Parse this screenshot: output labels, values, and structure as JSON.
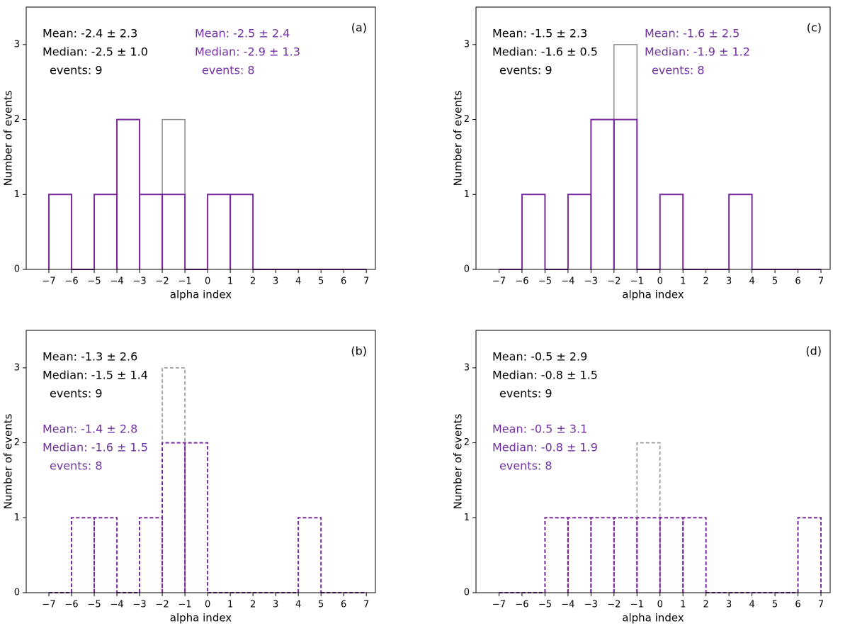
{
  "chart_data": [
    {
      "type": "histogram",
      "label": "(a)",
      "xlabel": "alpha index",
      "ylabel": "Number of events",
      "linestyle": "solid",
      "bins": [
        -7,
        -6,
        -5,
        -4,
        -3,
        -2,
        -1,
        0,
        1,
        2,
        3,
        4,
        5,
        6,
        7
      ],
      "series": [
        {
          "color": "#8c8c8c",
          "values": [
            1,
            0,
            1,
            2,
            1,
            2,
            0,
            1,
            1,
            0,
            0,
            0,
            0,
            0
          ],
          "stats": [
            "Mean: -2.4 ± 2.3",
            "Median: -2.5 ± 1.0",
            "events: 9"
          ]
        },
        {
          "color": "#7a2a9e",
          "values": [
            1,
            0,
            1,
            2,
            1,
            1,
            0,
            1,
            1,
            0,
            0,
            0,
            0,
            0
          ],
          "stats": [
            "Mean: -2.5 ± 2.4",
            "Median: -2.9 ± 1.3",
            "events: 8"
          ]
        }
      ],
      "xlim": [
        -8,
        7.4
      ],
      "ylim": [
        0,
        3.5
      ],
      "xticks": [
        {
          "value": -7,
          "label": "−7"
        },
        {
          "value": -6,
          "label": "−6"
        },
        {
          "value": -5,
          "label": "−5"
        },
        {
          "value": -4,
          "label": "−4"
        },
        {
          "value": -3,
          "label": "−3"
        },
        {
          "value": -2,
          "label": "−2"
        },
        {
          "value": -1,
          "label": "−1"
        },
        0,
        1,
        2,
        3,
        4,
        5,
        6,
        7
      ],
      "yticks": [
        0,
        1,
        2,
        3
      ]
    },
    {
      "type": "histogram",
      "label": "(c)",
      "xlabel": "alpha index",
      "ylabel": "Number of events",
      "linestyle": "solid",
      "bins": [
        -7,
        -6,
        -5,
        -4,
        -3,
        -2,
        -1,
        0,
        1,
        2,
        3,
        4,
        5,
        6,
        7
      ],
      "series": [
        {
          "color": "#8c8c8c",
          "values": [
            0,
            1,
            0,
            1,
            2,
            3,
            0,
            1,
            0,
            0,
            1,
            0,
            0,
            0
          ],
          "stats": [
            "Mean: -1.5 ± 2.3",
            "Median: -1.6 ± 0.5",
            "events: 9"
          ]
        },
        {
          "color": "#7a2a9e",
          "values": [
            0,
            1,
            0,
            1,
            2,
            2,
            0,
            1,
            0,
            0,
            1,
            0,
            0,
            0
          ],
          "stats": [
            "Mean: -1.6 ± 2.5",
            "Median: -1.9 ± 1.2",
            "events: 8"
          ]
        }
      ],
      "xlim": [
        -8,
        7.4
      ],
      "ylim": [
        0,
        3.5
      ],
      "xticks": [
        {
          "value": -7,
          "label": "−7"
        },
        {
          "value": -6,
          "label": "−6"
        },
        {
          "value": -5,
          "label": "−5"
        },
        {
          "value": -4,
          "label": "−4"
        },
        {
          "value": -3,
          "label": "−3"
        },
        {
          "value": -2,
          "label": "−2"
        },
        {
          "value": -1,
          "label": "−1"
        },
        0,
        1,
        2,
        3,
        4,
        5,
        6,
        7
      ],
      "yticks": [
        0,
        1,
        2,
        3
      ]
    },
    {
      "type": "histogram",
      "label": "(b)",
      "xlabel": "alpha index",
      "ylabel": "Number of events",
      "linestyle": "dashed",
      "bins": [
        -7,
        -6,
        -5,
        -4,
        -3,
        -2,
        -1,
        0,
        1,
        2,
        3,
        4,
        5,
        6,
        7
      ],
      "series": [
        {
          "color": "#8c8c8c",
          "values": [
            0,
            1,
            1,
            0,
            1,
            3,
            2,
            0,
            0,
            0,
            0,
            1,
            0,
            0
          ],
          "stats": [
            "Mean: -1.3 ± 2.6",
            "Median: -1.5 ± 1.4",
            "events: 9"
          ]
        },
        {
          "color": "#7a2a9e",
          "values": [
            0,
            1,
            1,
            0,
            1,
            2,
            2,
            0,
            0,
            0,
            0,
            1,
            0,
            0
          ],
          "stats": [
            "Mean: -1.4 ± 2.8",
            "Median: -1.6 ± 1.5",
            "events: 8"
          ]
        }
      ],
      "xlim": [
        -8,
        7.4
      ],
      "ylim": [
        0,
        3.5
      ],
      "xticks": [
        {
          "value": -7,
          "label": "−7"
        },
        {
          "value": -6,
          "label": "−6"
        },
        {
          "value": -5,
          "label": "−5"
        },
        {
          "value": -4,
          "label": "−4"
        },
        {
          "value": -3,
          "label": "−3"
        },
        {
          "value": -2,
          "label": "−2"
        },
        {
          "value": -1,
          "label": "−1"
        },
        0,
        1,
        2,
        3,
        4,
        5,
        6,
        7
      ],
      "yticks": [
        0,
        1,
        2,
        3
      ]
    },
    {
      "type": "histogram",
      "label": "(d)",
      "xlabel": "alpha index",
      "ylabel": "Number of events",
      "linestyle": "dashed",
      "bins": [
        -7,
        -6,
        -5,
        -4,
        -3,
        -2,
        -1,
        0,
        1,
        2,
        3,
        4,
        5,
        6,
        7
      ],
      "series": [
        {
          "color": "#8c8c8c",
          "values": [
            0,
            0,
            1,
            1,
            1,
            1,
            2,
            1,
            1,
            0,
            0,
            0,
            0,
            1
          ],
          "stats": [
            "Mean: -0.5 ± 2.9",
            "Median: -0.8 ± 1.5",
            "events: 9"
          ]
        },
        {
          "color": "#7a2a9e",
          "values": [
            0,
            0,
            1,
            1,
            1,
            1,
            1,
            1,
            1,
            0,
            0,
            0,
            0,
            1
          ],
          "stats": [
            "Mean: -0.5 ± 3.1",
            "Median: -0.8 ± 1.9",
            "events: 8"
          ]
        }
      ],
      "xlim": [
        -8,
        7.4
      ],
      "ylim": [
        0,
        3.5
      ],
      "xticks": [
        {
          "value": -7,
          "label": "−7"
        },
        {
          "value": -6,
          "label": "−6"
        },
        {
          "value": -5,
          "label": "−5"
        },
        {
          "value": -4,
          "label": "−4"
        },
        {
          "value": -3,
          "label": "−3"
        },
        {
          "value": -2,
          "label": "−2"
        },
        {
          "value": -1,
          "label": "−1"
        },
        0,
        1,
        2,
        3,
        4,
        5,
        6,
        7
      ],
      "yticks": [
        0,
        1,
        2,
        3
      ]
    }
  ]
}
